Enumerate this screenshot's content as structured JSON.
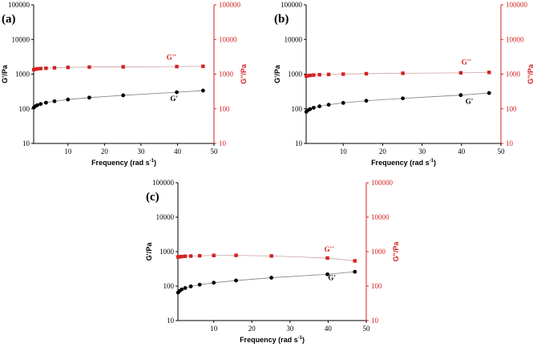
{
  "chart_data": [
    {
      "panel_label": "(a)",
      "type": "scatter",
      "xlabel": "Frequency (rad s",
      "xlabel_sup": "-1",
      "xlabel_close": ")",
      "ylabel_left": "G'/Pa",
      "ylabel_right": "G''/Pa",
      "xlim": [
        0.6,
        50
      ],
      "xticks": [
        10,
        20,
        30,
        40,
        50
      ],
      "ylim": [
        10,
        100000
      ],
      "yscale": "log",
      "yticks": [
        10,
        100,
        1000,
        10000,
        100000
      ],
      "ytick_labels": [
        "10",
        "100",
        "1000",
        "10000",
        "100000"
      ],
      "series": [
        {
          "name": "G''",
          "color": "#d42020",
          "marker": "square",
          "x": [
            0.63,
            1.0,
            1.58,
            2.51,
            3.98,
            6.31,
            10.0,
            15.85,
            25.12,
            39.81,
            47.0
          ],
          "values": [
            1350,
            1390,
            1420,
            1450,
            1480,
            1520,
            1560,
            1600,
            1620,
            1650,
            1680
          ]
        },
        {
          "name": "G'",
          "color": "#000000",
          "marker": "circle",
          "x": [
            0.63,
            1.0,
            1.58,
            2.51,
            3.98,
            6.31,
            10.0,
            15.85,
            25.12,
            39.81,
            47.0
          ],
          "values": [
            108,
            117,
            127,
            137,
            150,
            165,
            185,
            210,
            245,
            300,
            335
          ]
        }
      ],
      "label_positions": {
        "gpp_x": 37,
        "gpp_y": 2600,
        "gp_x": 38,
        "gp_y": 170
      }
    },
    {
      "panel_label": "(b)",
      "type": "scatter",
      "xlabel": "Frequency (rad s",
      "xlabel_sup": "-1",
      "xlabel_close": ")",
      "ylabel_left": "G'/Pa",
      "ylabel_right": "G''/Pa",
      "xlim": [
        0.6,
        50
      ],
      "xticks": [
        10,
        20,
        30,
        40,
        50
      ],
      "ylim": [
        10,
        100000
      ],
      "yscale": "log",
      "yticks": [
        10,
        100,
        1000,
        10000,
        100000
      ],
      "ytick_labels": [
        "10",
        "100",
        "1000",
        "10000",
        "100000"
      ],
      "series": [
        {
          "name": "G''",
          "color": "#d42020",
          "marker": "square",
          "x": [
            0.63,
            1.0,
            1.58,
            2.51,
            3.98,
            6.31,
            10.0,
            15.85,
            25.12,
            39.81,
            47.0
          ],
          "values": [
            880,
            900,
            920,
            940,
            960,
            980,
            1000,
            1030,
            1060,
            1090,
            1120
          ]
        },
        {
          "name": "G'",
          "color": "#000000",
          "marker": "circle",
          "x": [
            0.63,
            1.0,
            1.58,
            2.51,
            3.98,
            6.31,
            10.0,
            15.85,
            25.12,
            39.81,
            47.0
          ],
          "values": [
            82,
            90,
            98,
            107,
            118,
            131,
            148,
            170,
            200,
            248,
            285
          ]
        }
      ],
      "label_positions": {
        "gpp_x": 40,
        "gpp_y": 1900,
        "gp_x": 41,
        "gp_y": 140
      }
    },
    {
      "panel_label": "(c)",
      "type": "scatter",
      "xlabel": "Frequency (rad s",
      "xlabel_sup": "-1",
      "xlabel_close": ")",
      "ylabel_left": "G'/Pa",
      "ylabel_right": "G''/Pa",
      "xlim": [
        0.6,
        50
      ],
      "xticks": [
        10,
        20,
        30,
        40,
        50
      ],
      "ylim": [
        10,
        100000
      ],
      "yscale": "log",
      "yticks": [
        10,
        100,
        1000,
        10000,
        100000
      ],
      "ytick_labels": [
        "10",
        "100",
        "1000",
        "10000",
        "100000"
      ],
      "series": [
        {
          "name": "G''",
          "color": "#d42020",
          "marker": "square",
          "x": [
            0.63,
            1.0,
            1.58,
            2.51,
            3.98,
            6.31,
            10.0,
            15.85,
            25.12,
            39.81,
            47.0
          ],
          "values": [
            700,
            710,
            720,
            735,
            745,
            760,
            775,
            780,
            750,
            650,
            540
          ]
        },
        {
          "name": "G'",
          "color": "#000000",
          "marker": "circle",
          "x": [
            0.63,
            1.0,
            1.58,
            2.51,
            3.98,
            6.31,
            10.0,
            15.85,
            25.12,
            39.81,
            47.0
          ],
          "values": [
            65,
            72,
            80,
            88,
            98,
            110,
            125,
            145,
            175,
            220,
            260
          ]
        }
      ],
      "label_positions": {
        "gpp_x": 39,
        "gpp_y": 1000,
        "gp_x": 40,
        "gp_y": 150
      }
    }
  ]
}
